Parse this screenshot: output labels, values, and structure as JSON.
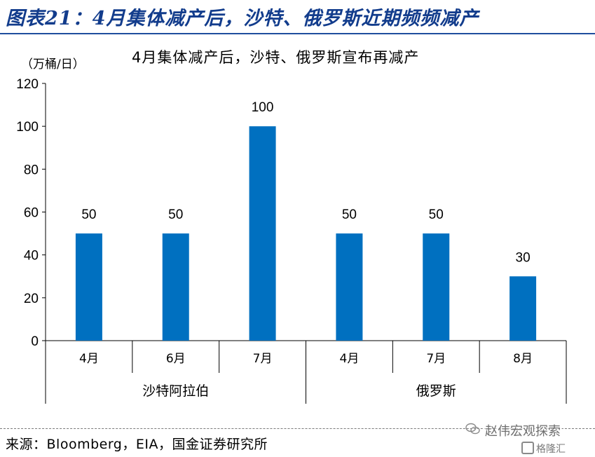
{
  "figure": {
    "title": "图表21：4月集体减产后，沙特、俄罗斯近期频频减产",
    "source": "来源：Bloomberg，EIA，国金证券研究所",
    "watermark": "赵伟宏观探索",
    "logo_text": "格隆汇"
  },
  "chart_data": {
    "type": "bar",
    "title": "4月集体减产后，沙特、俄罗斯宣布再减产",
    "ylabel": "（万桶/日）",
    "xlabel": "",
    "ylim": [
      0,
      120
    ],
    "yticks": [
      0,
      20,
      40,
      60,
      80,
      100,
      120
    ],
    "grid": false,
    "legend": "none",
    "bar_color": "#0070c0",
    "categories": [
      "4月",
      "6月",
      "7月",
      "4月",
      "7月",
      "8月"
    ],
    "groups": [
      {
        "label": "沙特阿拉伯",
        "count": 3
      },
      {
        "label": "俄罗斯",
        "count": 3
      }
    ],
    "values": [
      50,
      50,
      100,
      50,
      50,
      30
    ],
    "data_labels": [
      "50",
      "50",
      "100",
      "50",
      "50",
      "30"
    ]
  }
}
